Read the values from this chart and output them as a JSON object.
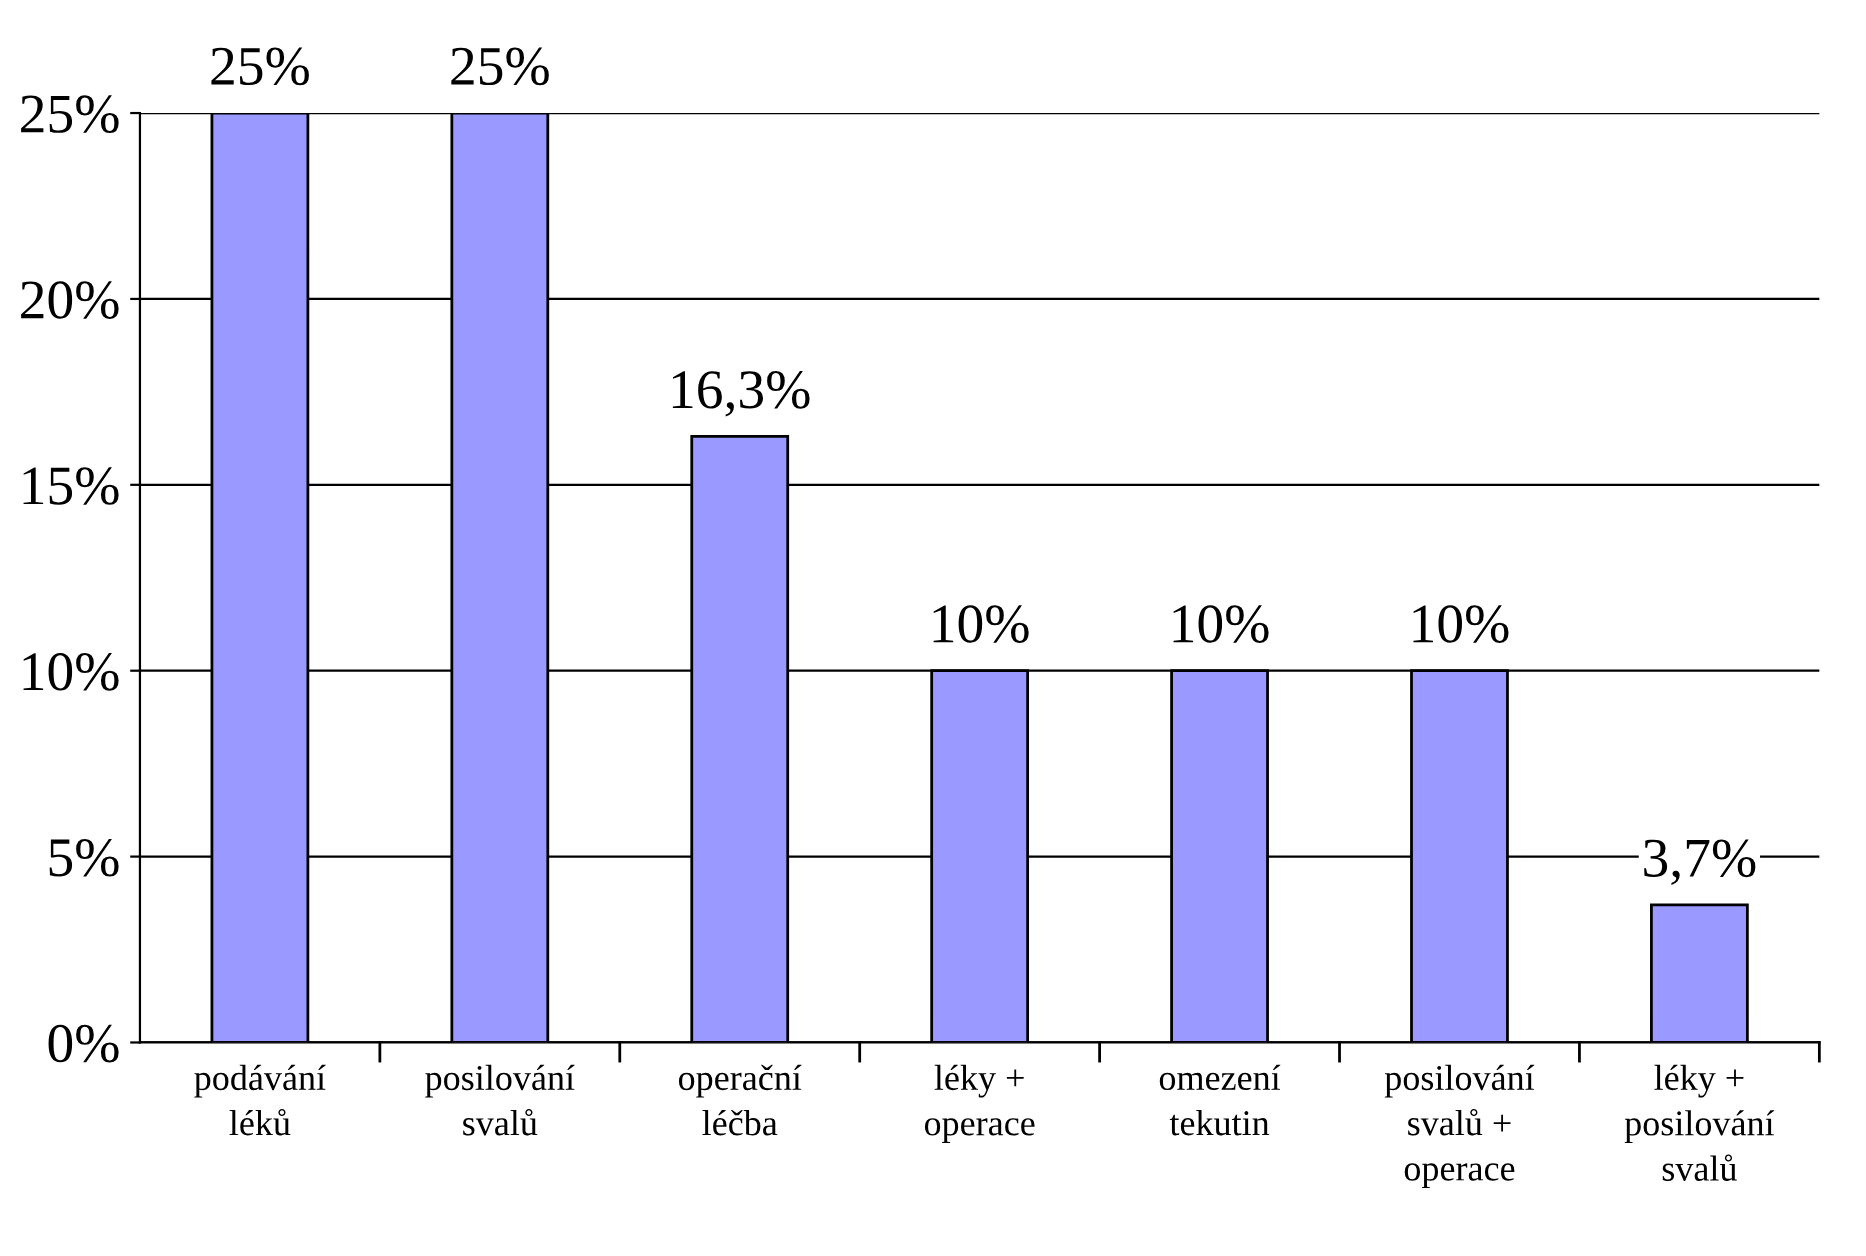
{
  "chart_data": {
    "type": "bar",
    "categories": [
      "podávání\nléků",
      "posilování\nsvalů",
      "operační\nléčba",
      "léky +\noperace",
      "omezení\ntekutin",
      "posilování\nsvalů +\noperace",
      "léky +\nposilování\nsvalů"
    ],
    "values": [
      25,
      25,
      16.3,
      10,
      10,
      10,
      3.7
    ],
    "value_labels": [
      "25%",
      "25%",
      "16,3%",
      "10%",
      "10%",
      "10%",
      "3,7%"
    ],
    "color": "#9999ff",
    "ylim": [
      0,
      25
    ],
    "yticks": [
      {
        "value": 0,
        "label": "0%"
      },
      {
        "value": 5,
        "label": "5%"
      },
      {
        "value": 10,
        "label": "10%"
      },
      {
        "value": 15,
        "label": "15%"
      },
      {
        "value": 20,
        "label": "20%"
      },
      {
        "value": 25,
        "label": "25%"
      }
    ],
    "grid": "y"
  }
}
